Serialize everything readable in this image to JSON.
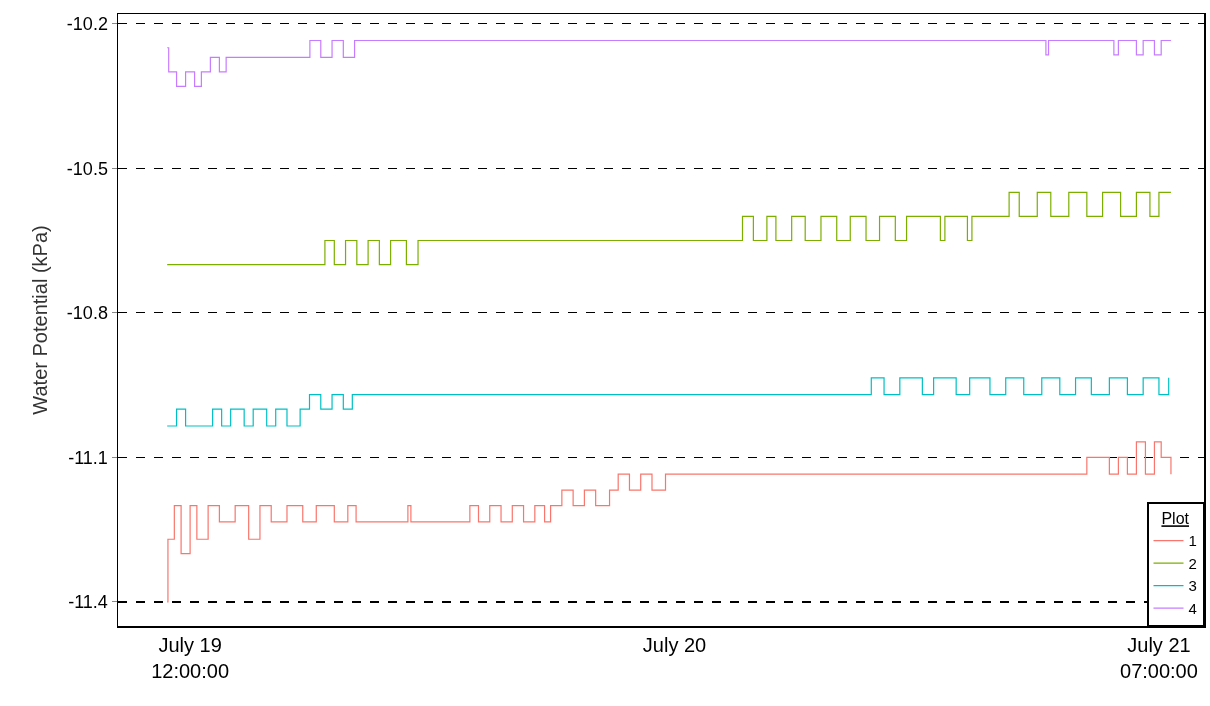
{
  "chart_data": {
    "type": "step",
    "ylabel": "Water Potential (kPa)",
    "legend_title": "Plot",
    "legend": "bottom right",
    "grid": "y",
    "line_style": "solid",
    "marker": "none",
    "xlim": [
      "--07-19T08:48",
      "--07-21T09:00"
    ],
    "xticks": [
      {
        "value": "--07-19T12:00",
        "label": "July 19\n12:00:00"
      },
      {
        "value": "--07-20T09:30",
        "label": "July 20"
      },
      {
        "value": "--07-21T07:00",
        "label": "July 21\n07:00:00"
      }
    ],
    "ylim": [
      -11.45,
      -10.18
    ],
    "yticks": [
      -11.4,
      -11.1,
      -10.8,
      -10.5,
      -10.2
    ],
    "series": [
      {
        "name": "1",
        "color": "#f8766d",
        "x": [
          "--07-19T10:59",
          "--07-19T11:01",
          "--07-19T11:18",
          "--07-19T11:36",
          "--07-19T12:00",
          "--07-19T12:18",
          "--07-19T12:48",
          "--07-19T13:18",
          "--07-19T14:00",
          "--07-19T14:36",
          "--07-19T15:06",
          "--07-19T15:36",
          "--07-19T16:18",
          "--07-19T17:00",
          "--07-19T17:36",
          "--07-19T18:24",
          "--07-19T19:00",
          "--07-19T19:22",
          "--07-19T21:40",
          "--07-19T21:48",
          "--07-20T00:25",
          "--07-20T00:48",
          "--07-20T01:18",
          "--07-20T01:48",
          "--07-20T02:18",
          "--07-20T02:48",
          "--07-20T03:18",
          "--07-20T03:44",
          "--07-20T04:00",
          "--07-20T04:30",
          "--07-20T05:00",
          "--07-20T05:30",
          "--07-20T06:00",
          "--07-20T06:37",
          "--07-20T07:00",
          "--07-20T07:30",
          "--07-20T08:00",
          "--07-20T08:30",
          "--07-20T09:06",
          "--07-21T03:48",
          "--07-21T04:48",
          "--07-21T05:12",
          "--07-21T05:36",
          "--07-21T06:00",
          "--07-21T06:24",
          "--07-21T06:48",
          "--07-21T07:06",
          "--07-21T07:32"
        ],
        "values": [
          -11.4,
          -11.27,
          -11.2,
          -11.3,
          -11.2,
          -11.27,
          -11.2,
          -11.234,
          -11.2,
          -11.27,
          -11.2,
          -11.234,
          -11.2,
          -11.234,
          -11.2,
          -11.234,
          -11.2,
          -11.234,
          -11.2,
          -11.234,
          -11.2,
          -11.234,
          -11.2,
          -11.234,
          -11.2,
          -11.234,
          -11.2,
          -11.234,
          -11.2,
          -11.168,
          -11.2,
          -11.168,
          -11.2,
          -11.168,
          -11.135,
          -11.168,
          -11.135,
          -11.168,
          -11.135,
          -11.1,
          -11.135,
          -11.1,
          -11.135,
          -11.068,
          -11.135,
          -11.068,
          -11.1,
          -11.135
        ]
      },
      {
        "name": "2",
        "color": "#7cae00",
        "x": [
          "--07-19T10:59",
          "--07-19T17:59",
          "--07-19T18:24",
          "--07-19T18:54",
          "--07-19T19:24",
          "--07-19T19:54",
          "--07-19T20:24",
          "--07-19T20:54",
          "--07-19T21:36",
          "--07-19T22:07",
          "--07-20T12:31",
          "--07-20T13:00",
          "--07-20T13:36",
          "--07-20T14:00",
          "--07-20T14:42",
          "--07-20T15:18",
          "--07-20T16:00",
          "--07-20T16:42",
          "--07-20T17:18",
          "--07-20T18:00",
          "--07-20T18:36",
          "--07-20T19:18",
          "--07-20T19:48",
          "--07-20T21:18",
          "--07-20T21:30",
          "--07-20T22:30",
          "--07-20T22:42",
          "--07-21T00:21",
          "--07-21T00:48",
          "--07-21T01:36",
          "--07-21T02:12",
          "--07-21T03:00",
          "--07-21T03:48",
          "--07-21T04:30",
          "--07-21T05:18",
          "--07-21T06:00",
          "--07-21T06:36",
          "--07-21T07:00",
          "--07-21T07:32"
        ],
        "values": [
          -10.7,
          -10.65,
          -10.7,
          -10.65,
          -10.7,
          -10.65,
          -10.7,
          -10.65,
          -10.7,
          -10.65,
          -10.6,
          -10.65,
          -10.6,
          -10.65,
          -10.6,
          -10.65,
          -10.6,
          -10.65,
          -10.6,
          -10.65,
          -10.6,
          -10.65,
          -10.6,
          -10.65,
          -10.6,
          -10.65,
          -10.6,
          -10.55,
          -10.6,
          -10.55,
          -10.6,
          -10.55,
          -10.6,
          -10.55,
          -10.6,
          -10.55,
          -10.6,
          -10.55,
          -10.55
        ]
      },
      {
        "name": "3",
        "color": "#00bfc4",
        "x": [
          "--07-19T10:59",
          "--07-19T11:24",
          "--07-19T11:48",
          "--07-19T13:00",
          "--07-19T13:24",
          "--07-19T13:48",
          "--07-19T14:24",
          "--07-19T14:48",
          "--07-19T15:24",
          "--07-19T15:48",
          "--07-19T16:18",
          "--07-19T16:53",
          "--07-19T17:18",
          "--07-19T17:48",
          "--07-19T18:18",
          "--07-19T18:48",
          "--07-19T19:12",
          "--07-20T18:14",
          "--07-20T18:48",
          "--07-20T19:30",
          "--07-20T20:30",
          "--07-20T21:00",
          "--07-20T22:00",
          "--07-20T22:36",
          "--07-20T23:30",
          "--07-21T00:12",
          "--07-21T01:00",
          "--07-21T01:48",
          "--07-21T02:36",
          "--07-21T03:18",
          "--07-21T04:00",
          "--07-21T04:48",
          "--07-21T05:36",
          "--07-21T06:18",
          "--07-21T07:00",
          "--07-21T07:26"
        ],
        "values": [
          -11.035,
          -11.0,
          -11.035,
          -11.0,
          -11.035,
          -11.0,
          -11.035,
          -11.0,
          -11.035,
          -11.0,
          -11.035,
          -11.0,
          -10.97,
          -11.0,
          -10.97,
          -11.0,
          -10.97,
          -10.935,
          -10.97,
          -10.935,
          -10.97,
          -10.935,
          -10.97,
          -10.935,
          -10.97,
          -10.935,
          -10.97,
          -10.935,
          -10.97,
          -10.935,
          -10.97,
          -10.935,
          -10.97,
          -10.935,
          -10.97,
          -10.935
        ]
      },
      {
        "name": "4",
        "color": "#c77cff",
        "x": [
          "--07-19T10:59",
          "--07-19T11:03",
          "--07-19T11:24",
          "--07-19T11:48",
          "--07-19T12:12",
          "--07-19T12:30",
          "--07-19T12:54",
          "--07-19T13:18",
          "--07-19T13:36",
          "--07-19T17:19",
          "--07-19T17:48",
          "--07-19T18:18",
          "--07-19T18:48",
          "--07-19T19:18",
          "--07-21T01:59",
          "--07-21T02:06",
          "--07-21T05:00",
          "--07-21T05:12",
          "--07-21T06:00",
          "--07-21T06:18",
          "--07-21T06:48",
          "--07-21T07:06",
          "--07-21T07:32"
        ],
        "values": [
          -10.25,
          -10.3,
          -10.33,
          -10.3,
          -10.33,
          -10.3,
          -10.27,
          -10.3,
          -10.27,
          -10.235,
          -10.27,
          -10.235,
          -10.27,
          -10.235,
          -10.265,
          -10.235,
          -10.265,
          -10.235,
          -10.265,
          -10.235,
          -10.265,
          -10.235,
          -10.235
        ]
      }
    ]
  }
}
